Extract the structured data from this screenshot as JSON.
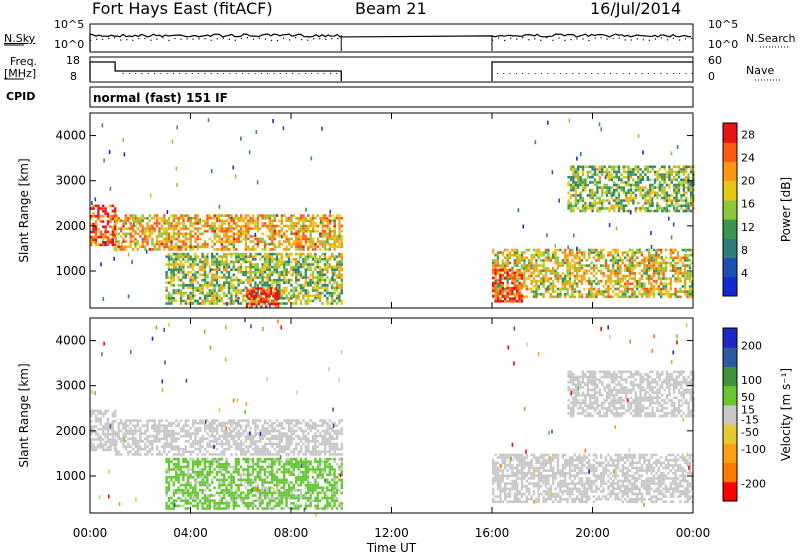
{
  "header": {
    "station": "Fort Hays East (fitACF)",
    "beam": "Beam 21",
    "date": "16/Jul/2014"
  },
  "panels": {
    "nsky_label": "N.Sky",
    "nsearch_label": "N.Search",
    "freq_label": "Freq.",
    "freq_unit": "[MHz]",
    "nave_label": "Nave",
    "cpid_label": "CPID",
    "cpid_value": "normal (fast) 151 IF",
    "noise_ticks": [
      "10^5",
      "10^0"
    ],
    "freq_ticks": [
      "18",
      "8"
    ],
    "nave_ticks": [
      "60",
      "0"
    ]
  },
  "colors": {
    "power": [
      "#1428d2",
      "#1e50b4",
      "#2d7d78",
      "#3c9650",
      "#8cc83c",
      "#e6c814",
      "#ff9614",
      "#ff5a14",
      "#e61414"
    ],
    "velocity": [
      "#ff0000",
      "#ff7800",
      "#ffa014",
      "#e6c832",
      "#c8c8c8",
      "#64c832",
      "#3c963c",
      "#2d5aa0",
      "#1e28c8"
    ]
  },
  "chart_data": [
    {
      "type": "heatmap",
      "name": "power",
      "xlabel": "",
      "ylabel": "Slant Range [km]",
      "x_ticks": [
        "00:00",
        "04:00",
        "08:00",
        "12:00",
        "16:00",
        "20:00",
        "00:00"
      ],
      "x_tick_hours": [
        0,
        4,
        8,
        12,
        16,
        20,
        24
      ],
      "y_ticks": [
        1000,
        2000,
        3000,
        4000
      ],
      "xlim": [
        0,
        24
      ],
      "ylim": [
        180,
        4500
      ],
      "colorbar_label": "Power [dB]",
      "colorbar_ticks": [
        4,
        8,
        12,
        16,
        20,
        24,
        28
      ],
      "colorbar_range": [
        0,
        30
      ],
      "data_gap_hours": [
        10,
        16
      ],
      "echo_bands": [
        {
          "t0": 0.0,
          "t1": 1.0,
          "r0": 1550,
          "r1": 2450,
          "value": 26
        },
        {
          "t0": 1.0,
          "t1": 10.0,
          "r0": 1450,
          "r1": 2200,
          "value": 20
        },
        {
          "t0": 3.0,
          "t1": 10.0,
          "r0": 250,
          "r1": 1350,
          "value": 15
        },
        {
          "t0": 6.2,
          "t1": 7.5,
          "r0": 180,
          "r1": 600,
          "value": 27
        },
        {
          "t0": 16.0,
          "t1": 24.0,
          "r0": 400,
          "r1": 1450,
          "value": 18
        },
        {
          "t0": 16.0,
          "t1": 17.2,
          "r0": 300,
          "r1": 1000,
          "value": 27
        },
        {
          "t0": 19.0,
          "t1": 24.0,
          "r0": 2300,
          "r1": 3300,
          "value": 14
        }
      ]
    },
    {
      "type": "heatmap",
      "name": "velocity",
      "xlabel": "Time UT",
      "ylabel": "Slant Range [km]",
      "x_ticks": [
        "00:00",
        "04:00",
        "08:00",
        "12:00",
        "16:00",
        "20:00",
        "00:00"
      ],
      "x_tick_hours": [
        0,
        4,
        8,
        12,
        16,
        20,
        24
      ],
      "y_ticks": [
        1000,
        2000,
        3000,
        4000
      ],
      "xlim": [
        0,
        24
      ],
      "ylim": [
        180,
        4500
      ],
      "colorbar_label": "Velocity [m s⁻¹]",
      "colorbar_ticks": [
        -200,
        -100,
        -50,
        -15,
        15,
        50,
        100,
        200
      ],
      "colorbar_range": [
        -250,
        250
      ],
      "data_gap_hours": [
        10,
        16
      ],
      "echo_bands": [
        {
          "t0": 0.0,
          "t1": 1.0,
          "r0": 1550,
          "r1": 2450,
          "value": 0
        },
        {
          "t0": 1.0,
          "t1": 10.0,
          "r0": 1450,
          "r1": 2200,
          "value": 0
        },
        {
          "t0": 3.0,
          "t1": 10.0,
          "r0": 250,
          "r1": 1350,
          "value": 40
        },
        {
          "t0": 16.0,
          "t1": 24.0,
          "r0": 400,
          "r1": 1450,
          "value": 0
        },
        {
          "t0": 19.0,
          "t1": 24.0,
          "r0": 2300,
          "r1": 3300,
          "value": 0
        }
      ]
    }
  ]
}
